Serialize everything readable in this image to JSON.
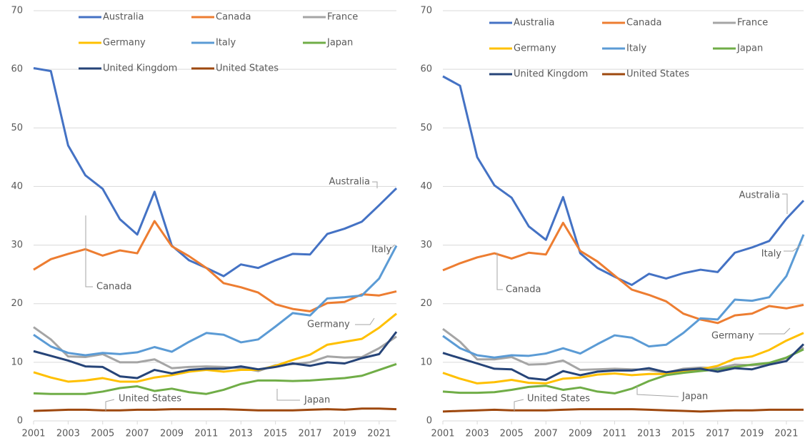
{
  "chart_data": [
    {
      "type": "line",
      "x": [
        2001,
        2002,
        2003,
        2004,
        2005,
        2006,
        2007,
        2008,
        2009,
        2010,
        2011,
        2012,
        2013,
        2014,
        2015,
        2016,
        2017,
        2018,
        2019,
        2020,
        2021,
        2022
      ],
      "xlim": [
        2001,
        2022
      ],
      "xticks": [
        2001,
        2003,
        2005,
        2007,
        2009,
        2011,
        2013,
        2015,
        2017,
        2019,
        2021
      ],
      "ylim": [
        0,
        70
      ],
      "yticks": [
        0,
        10,
        20,
        30,
        40,
        50,
        60,
        70
      ],
      "grid": true,
      "series": [
        {
          "name": "Australia",
          "color": "#4472c4",
          "values": [
            60.2,
            59.7,
            47,
            41.9,
            39.6,
            34.4,
            31.8,
            39.1,
            29.9,
            27.4,
            26.1,
            24.7,
            26.7,
            26.1,
            27.4,
            28.5,
            28.4,
            31.9,
            32.8,
            34,
            36.8,
            39.7
          ]
        },
        {
          "name": "Canada",
          "color": "#ed7d31",
          "values": [
            25.8,
            27.6,
            28.5,
            29.3,
            28.2,
            29.1,
            28.6,
            34.1,
            29.8,
            28.1,
            26.1,
            23.5,
            22.8,
            21.9,
            19.9,
            19.1,
            18.7,
            20.1,
            20.3,
            21.6,
            21.4,
            22.1
          ]
        },
        {
          "name": "France",
          "color": "#a5a5a5",
          "values": [
            16.0,
            13.9,
            11.0,
            10.9,
            11.4,
            10.0,
            10.0,
            10.5,
            9.0,
            9.2,
            9.3,
            9.2,
            9.0,
            8.5,
            9.5,
            9.7,
            10.0,
            11.0,
            10.8,
            10.9,
            12.4,
            14.4
          ]
        },
        {
          "name": "Germany",
          "color": "#ffc000",
          "values": [
            8.3,
            7.4,
            6.7,
            6.9,
            7.3,
            6.7,
            6.7,
            7.4,
            7.8,
            8.4,
            8.7,
            8.4,
            8.7,
            8.7,
            9.4,
            10.4,
            11.3,
            13.0,
            13.5,
            14.0,
            15.9,
            18.3
          ]
        },
        {
          "name": "Italy",
          "color": "#5b9bd5",
          "values": [
            14.7,
            12.7,
            11.6,
            11.2,
            11.6,
            11.4,
            11.7,
            12.6,
            11.8,
            13.5,
            15.0,
            14.7,
            13.4,
            13.9,
            16.1,
            18.4,
            18.0,
            20.9,
            21.1,
            21.4,
            24.3,
            29.9
          ]
        },
        {
          "name": "Japan",
          "color": "#70ad47",
          "values": [
            4.7,
            4.6,
            4.6,
            4.6,
            5.0,
            5.6,
            5.9,
            5.1,
            5.5,
            4.9,
            4.6,
            5.3,
            6.3,
            6.9,
            6.9,
            6.8,
            6.9,
            7.1,
            7.3,
            7.7,
            8.7,
            9.7
          ]
        },
        {
          "name": "United Kingdom",
          "color": "#264478",
          "values": [
            11.9,
            11.1,
            10.3,
            9.3,
            9.2,
            7.6,
            7.3,
            8.7,
            8.1,
            8.7,
            8.9,
            8.9,
            9.3,
            8.8,
            9.2,
            9.8,
            9.4,
            10.0,
            9.8,
            10.7,
            11.4,
            15.2
          ]
        },
        {
          "name": "United States",
          "color": "#9e480e",
          "values": [
            1.7,
            1.8,
            1.9,
            1.9,
            1.8,
            1.8,
            1.9,
            1.9,
            2.0,
            2.0,
            2.0,
            2.0,
            1.9,
            1.8,
            1.8,
            1.8,
            1.9,
            2.0,
            1.9,
            2.1,
            2.1,
            2.0
          ]
        }
      ],
      "annotations": [
        "Australia",
        "Italy",
        "Canada",
        "Germany",
        "Japan",
        "United States"
      ]
    },
    {
      "type": "line",
      "x": [
        2001,
        2002,
        2003,
        2004,
        2005,
        2006,
        2007,
        2008,
        2009,
        2010,
        2011,
        2012,
        2013,
        2014,
        2015,
        2016,
        2017,
        2018,
        2019,
        2020,
        2021,
        2022
      ],
      "xlim": [
        2001,
        2022
      ],
      "xticks": [
        2001,
        2003,
        2005,
        2007,
        2009,
        2011,
        2013,
        2015,
        2017,
        2019,
        2021
      ],
      "ylim": [
        0,
        70
      ],
      "yticks": [
        0,
        10,
        20,
        30,
        40,
        50,
        60,
        70
      ],
      "grid": true,
      "series": [
        {
          "name": "Australia",
          "color": "#4472c4",
          "values": [
            58.8,
            57.2,
            45,
            40.2,
            38.1,
            33.2,
            30.9,
            38.2,
            28.6,
            26.1,
            24.6,
            23.2,
            25.1,
            24.3,
            25.2,
            25.8,
            25.4,
            28.7,
            29.6,
            30.7,
            34.5,
            37.6
          ]
        },
        {
          "name": "Canada",
          "color": "#ed7d31",
          "values": [
            25.7,
            26.9,
            27.9,
            28.6,
            27.7,
            28.7,
            28.4,
            33.8,
            29.0,
            27.2,
            24.8,
            22.4,
            21.5,
            20.4,
            18.3,
            17.3,
            16.7,
            18.0,
            18.3,
            19.6,
            19.2,
            19.8
          ]
        },
        {
          "name": "France",
          "color": "#a5a5a5",
          "values": [
            15.7,
            13.5,
            10.5,
            10.5,
            10.9,
            9.6,
            9.7,
            10.3,
            8.7,
            8.8,
            8.9,
            8.8,
            8.7,
            8.2,
            8.9,
            9.1,
            9.0,
            9.6,
            9.5,
            9.7,
            10.7,
            12.5
          ]
        },
        {
          "name": "Germany",
          "color": "#ffc000",
          "values": [
            8.2,
            7.2,
            6.4,
            6.6,
            7.0,
            6.5,
            6.4,
            7.2,
            7.4,
            7.9,
            8.1,
            7.8,
            8.0,
            8.0,
            8.5,
            8.8,
            9.4,
            10.6,
            11.0,
            12.1,
            13.7,
            15.0
          ]
        },
        {
          "name": "Italy",
          "color": "#5b9bd5",
          "values": [
            14.5,
            12.4,
            11.2,
            10.8,
            11.2,
            11.1,
            11.5,
            12.4,
            11.5,
            13.1,
            14.6,
            14.2,
            12.7,
            13.0,
            15.0,
            17.5,
            17.3,
            20.7,
            20.5,
            21.1,
            24.7,
            31.8
          ]
        },
        {
          "name": "Japan",
          "color": "#70ad47",
          "values": [
            5.0,
            4.8,
            4.8,
            4.9,
            5.3,
            5.8,
            6.0,
            5.3,
            5.7,
            5.0,
            4.7,
            5.5,
            6.8,
            7.8,
            8.2,
            8.5,
            8.8,
            9.2,
            9.6,
            9.9,
            10.8,
            12.2
          ]
        },
        {
          "name": "United Kingdom",
          "color": "#264478",
          "values": [
            11.6,
            10.7,
            9.8,
            8.9,
            8.8,
            7.3,
            7.0,
            8.5,
            7.8,
            8.4,
            8.6,
            8.6,
            9.0,
            8.3,
            8.7,
            8.9,
            8.4,
            9.0,
            8.8,
            9.6,
            10.2,
            13.1
          ]
        },
        {
          "name": "United States",
          "color": "#9e480e",
          "values": [
            1.6,
            1.7,
            1.8,
            1.9,
            1.8,
            1.8,
            1.8,
            1.9,
            2.0,
            2.0,
            2.0,
            2.0,
            1.9,
            1.8,
            1.7,
            1.6,
            1.7,
            1.8,
            1.8,
            1.9,
            1.9,
            1.9
          ]
        }
      ],
      "annotations": [
        "Australia",
        "Italy",
        "Canada",
        "Germany",
        "Japan",
        "United States"
      ]
    }
  ]
}
